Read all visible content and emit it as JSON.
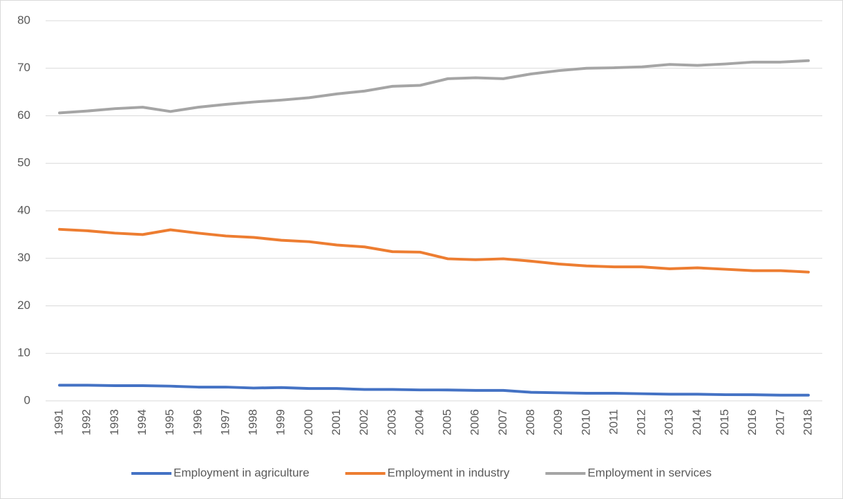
{
  "chart_data": {
    "type": "line",
    "categories": [
      "1991",
      "1992",
      "1993",
      "1994",
      "1995",
      "1996",
      "1997",
      "1998",
      "1999",
      "2000",
      "2001",
      "2002",
      "2003",
      "2004",
      "2005",
      "2006",
      "2007",
      "2008",
      "2009",
      "2010",
      "2011",
      "2012",
      "2013",
      "2014",
      "2015",
      "2016",
      "2017",
      "2018"
    ],
    "series": [
      {
        "name": "Employment in agriculture",
        "color": "#4472c4",
        "values": [
          3.3,
          3.3,
          3.2,
          3.2,
          3.1,
          2.9,
          2.9,
          2.7,
          2.8,
          2.6,
          2.6,
          2.4,
          2.4,
          2.3,
          2.3,
          2.2,
          2.2,
          1.8,
          1.7,
          1.6,
          1.6,
          1.5,
          1.4,
          1.4,
          1.3,
          1.3,
          1.2,
          1.2
        ]
      },
      {
        "name": "Employment in industry",
        "color": "#ed7d31",
        "values": [
          36.1,
          35.8,
          35.3,
          35.0,
          36.0,
          35.3,
          34.7,
          34.4,
          33.8,
          33.5,
          32.8,
          32.4,
          31.4,
          31.3,
          29.9,
          29.7,
          29.9,
          29.4,
          28.8,
          28.4,
          28.2,
          28.2,
          27.8,
          28.0,
          27.7,
          27.4,
          27.4,
          27.1
        ]
      },
      {
        "name": "Employment in services",
        "color": "#a5a5a5",
        "values": [
          60.6,
          61.0,
          61.5,
          61.8,
          60.9,
          61.8,
          62.4,
          62.9,
          63.3,
          63.8,
          64.6,
          65.2,
          66.2,
          66.4,
          67.8,
          68.0,
          67.8,
          68.8,
          69.5,
          70.0,
          70.1,
          70.3,
          70.8,
          70.6,
          70.9,
          71.3,
          71.3,
          71.6
        ]
      }
    ],
    "ylim": [
      0,
      80
    ],
    "yticks": [
      0,
      10,
      20,
      30,
      40,
      50,
      60,
      70,
      80
    ],
    "grid": true,
    "legend": "bottom"
  }
}
